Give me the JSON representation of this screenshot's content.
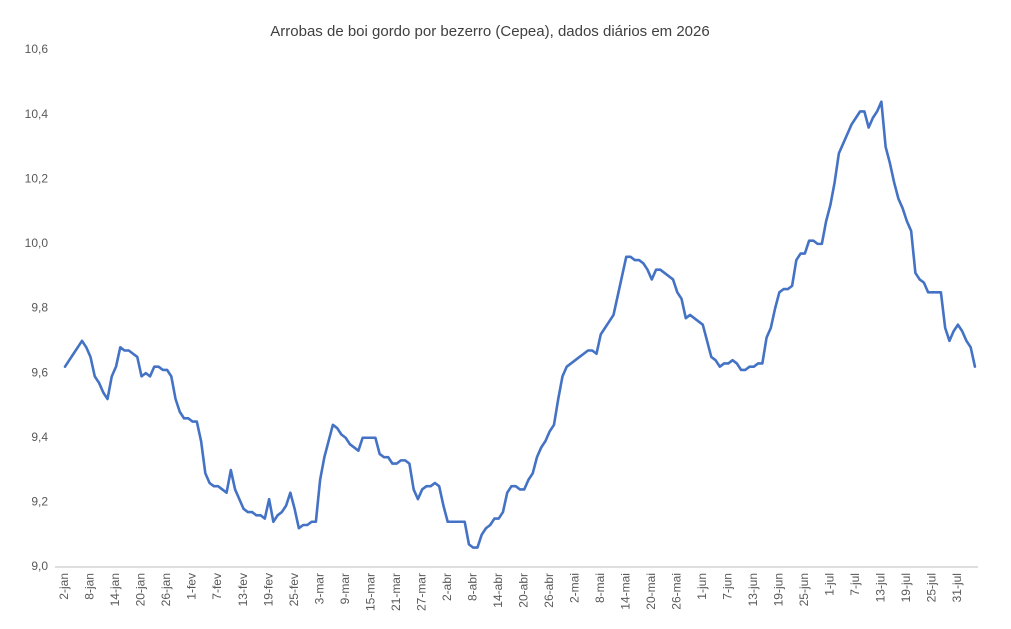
{
  "chart_data": {
    "type": "line",
    "title": "Arrobas de boi gordo por bezerro (Cepea), dados diários em 2026",
    "color": "#4472c4",
    "ylim": [
      9.0,
      10.6
    ],
    "yticks": [
      {
        "value": 9.0,
        "label": "9,0"
      },
      {
        "value": 9.2,
        "label": "9,2"
      },
      {
        "value": 9.4,
        "label": "9,4"
      },
      {
        "value": 9.6,
        "label": "9,6"
      },
      {
        "value": 9.8,
        "label": "9,8"
      },
      {
        "value": 10.0,
        "label": "10,0"
      },
      {
        "value": 10.2,
        "label": "10,2"
      },
      {
        "value": 10.4,
        "label": "10,4"
      },
      {
        "value": 10.6,
        "label": "10,6"
      }
    ],
    "grid": false,
    "categories": [
      "2-jan",
      null,
      null,
      null,
      null,
      null,
      "8-jan",
      null,
      null,
      null,
      null,
      null,
      "14-jan",
      null,
      null,
      null,
      null,
      null,
      "20-jan",
      null,
      null,
      null,
      null,
      null,
      "26-jan",
      null,
      null,
      null,
      null,
      null,
      "1-fev",
      null,
      null,
      null,
      null,
      null,
      "7-fev",
      null,
      null,
      null,
      null,
      null,
      "13-fev",
      null,
      null,
      null,
      null,
      null,
      "19-fev",
      null,
      null,
      null,
      null,
      null,
      "25-fev",
      null,
      null,
      null,
      null,
      null,
      "3-mar",
      null,
      null,
      null,
      null,
      null,
      "9-mar",
      null,
      null,
      null,
      null,
      null,
      "15-mar",
      null,
      null,
      null,
      null,
      null,
      "21-mar",
      null,
      null,
      null,
      null,
      null,
      "27-mar",
      null,
      null,
      null,
      null,
      null,
      "2-abr",
      null,
      null,
      null,
      null,
      null,
      "8-abr",
      null,
      null,
      null,
      null,
      null,
      "14-abr",
      null,
      null,
      null,
      null,
      null,
      "20-abr",
      null,
      null,
      null,
      null,
      null,
      "26-abr",
      null,
      null,
      null,
      null,
      null,
      "2-mai",
      null,
      null,
      null,
      null,
      null,
      "8-mai",
      null,
      null,
      null,
      null,
      null,
      "14-mai",
      null,
      null,
      null,
      null,
      null,
      "20-mai",
      null,
      null,
      null,
      null,
      null,
      "26-mai",
      null,
      null,
      null,
      null,
      null,
      "1-jun",
      null,
      null,
      null,
      null,
      null,
      "7-jun",
      null,
      null,
      null,
      null,
      null,
      "13-jun",
      null,
      null,
      null,
      null,
      null,
      "19-jun",
      null,
      null,
      null,
      null,
      null,
      "25-jun",
      null,
      null,
      null,
      null,
      null,
      "1-jul",
      null,
      null,
      null,
      null,
      null,
      "7-jul",
      null,
      null,
      null,
      null,
      null,
      "13-jul",
      null,
      null,
      null,
      null,
      null,
      "19-jul",
      null,
      null,
      null,
      null,
      null,
      "25-jul",
      null,
      null,
      null,
      null,
      null,
      "31-jul",
      null,
      null,
      null,
      null
    ],
    "values": [
      9.62,
      9.64,
      9.66,
      9.68,
      9.7,
      9.68,
      9.65,
      9.59,
      9.57,
      9.54,
      9.52,
      9.59,
      9.62,
      9.68,
      9.67,
      9.67,
      9.66,
      9.65,
      9.59,
      9.6,
      9.59,
      9.62,
      9.62,
      9.61,
      9.61,
      9.59,
      9.52,
      9.48,
      9.46,
      9.46,
      9.45,
      9.45,
      9.39,
      9.29,
      9.26,
      9.25,
      9.25,
      9.24,
      9.23,
      9.3,
      9.24,
      9.21,
      9.18,
      9.17,
      9.17,
      9.16,
      9.16,
      9.15,
      9.21,
      9.14,
      9.16,
      9.17,
      9.19,
      9.23,
      9.18,
      9.12,
      9.13,
      9.13,
      9.14,
      9.14,
      9.27,
      9.34,
      9.39,
      9.44,
      9.43,
      9.41,
      9.4,
      9.38,
      9.37,
      9.36,
      9.4,
      9.4,
      9.4,
      9.4,
      9.35,
      9.34,
      9.34,
      9.32,
      9.32,
      9.33,
      9.33,
      9.32,
      9.24,
      9.21,
      9.24,
      9.25,
      9.25,
      9.26,
      9.25,
      9.19,
      9.14,
      9.14,
      9.14,
      9.14,
      9.14,
      9.07,
      9.06,
      9.06,
      9.1,
      9.12,
      9.13,
      9.15,
      9.15,
      9.17,
      9.23,
      9.25,
      9.25,
      9.24,
      9.24,
      9.27,
      9.29,
      9.34,
      9.37,
      9.39,
      9.42,
      9.44,
      9.52,
      9.59,
      9.62,
      9.63,
      9.64,
      9.65,
      9.66,
      9.67,
      9.67,
      9.66,
      9.72,
      9.74,
      9.76,
      9.78,
      9.84,
      9.9,
      9.96,
      9.96,
      9.95,
      9.95,
      9.94,
      9.92,
      9.89,
      9.92,
      9.92,
      9.91,
      9.9,
      9.89,
      9.85,
      9.83,
      9.77,
      9.78,
      9.77,
      9.76,
      9.75,
      9.7,
      9.65,
      9.64,
      9.62,
      9.63,
      9.63,
      9.64,
      9.63,
      9.61,
      9.61,
      9.62,
      9.62,
      9.63,
      9.63,
      9.71,
      9.74,
      9.8,
      9.85,
      9.86,
      9.86,
      9.87,
      9.95,
      9.97,
      9.97,
      10.01,
      10.01,
      10.0,
      10.0,
      10.07,
      10.12,
      10.19,
      10.28,
      10.31,
      10.34,
      10.37,
      10.39,
      10.41,
      10.41,
      10.36,
      10.39,
      10.41,
      10.44,
      10.3,
      10.25,
      10.19,
      10.14,
      10.11,
      10.07,
      10.04,
      9.91,
      9.89,
      9.88,
      9.85,
      9.85,
      9.85,
      9.85,
      9.74,
      9.7,
      9.73,
      9.75,
      9.73,
      9.7,
      9.68,
      9.62
    ]
  }
}
